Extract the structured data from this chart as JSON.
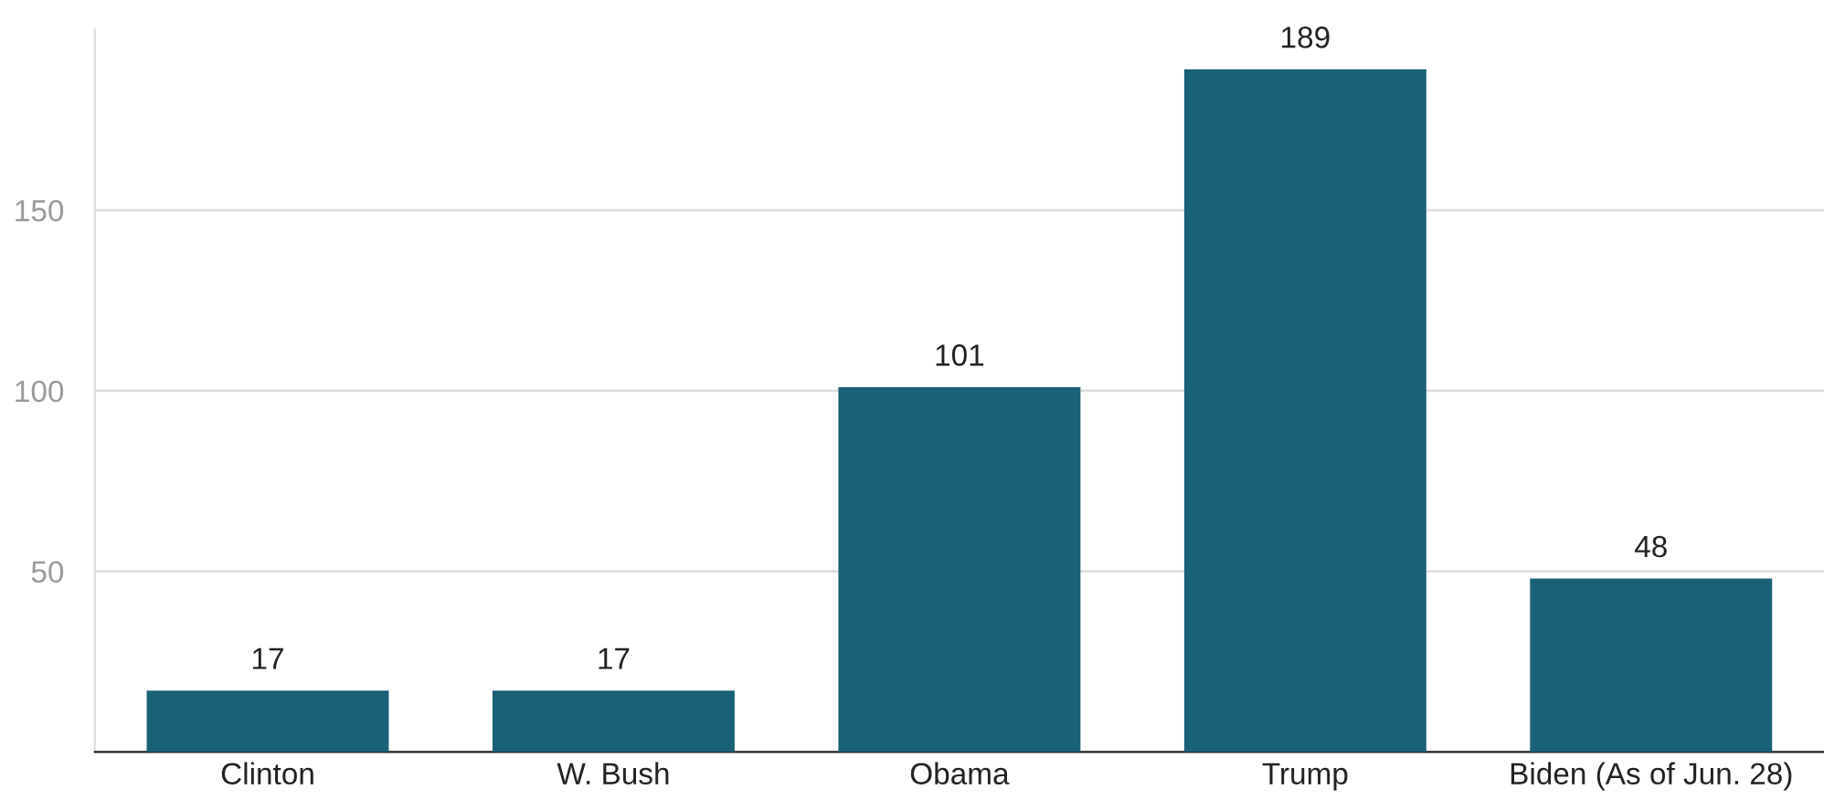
{
  "chart_data": {
    "type": "bar",
    "categories": [
      "Clinton",
      "W. Bush",
      "Obama",
      "Trump",
      "Biden (As of Jun. 28)"
    ],
    "values": [
      17,
      17,
      101,
      189,
      48
    ],
    "color": "#186177",
    "ylim": [
      0,
      200
    ],
    "yticks": [
      50,
      100,
      150
    ],
    "grid": "y",
    "data_labels": true
  }
}
